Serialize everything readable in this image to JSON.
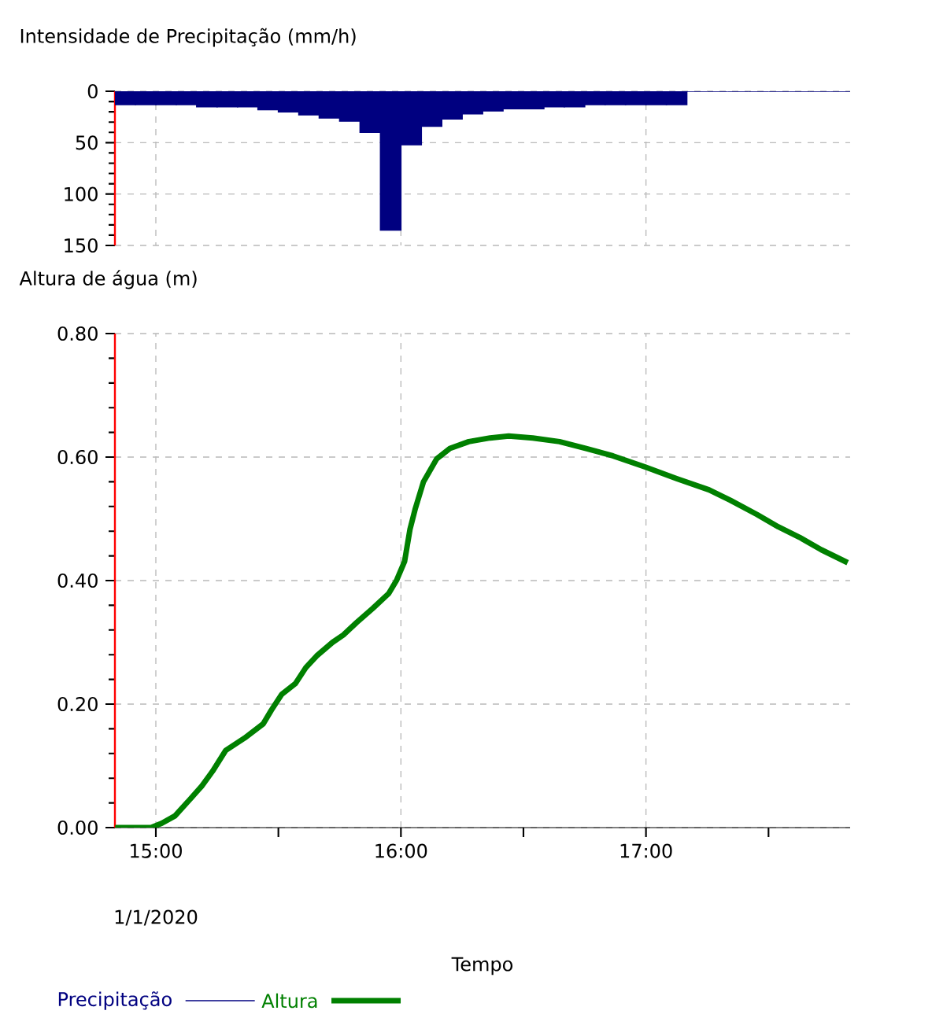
{
  "chart_data": [
    {
      "type": "bar",
      "title": "Intensidade de Precipitação (mm/h)",
      "xlim": [
        14.833,
        17.833
      ],
      "ylim": [
        150,
        0
      ],
      "xticks": [
        15,
        16,
        17
      ],
      "yticks": [
        0,
        50,
        100,
        150
      ],
      "tick_labels": "y",
      "grid": true,
      "legend": "bottom",
      "x": [
        14.875,
        14.9583,
        15.0417,
        15.125,
        15.2083,
        15.2917,
        15.375,
        15.4583,
        15.5417,
        15.625,
        15.7083,
        15.7917,
        15.875,
        15.9583,
        16.0417,
        16.125,
        16.2083,
        16.2917,
        16.375,
        16.4583,
        16.5417,
        16.625,
        16.7083,
        16.7917,
        16.875,
        16.9583,
        17.0417,
        17.125,
        17.2083,
        17.2917,
        17.375,
        17.4583,
        17.5417,
        17.625,
        17.7083,
        17.7917
      ],
      "series": [
        {
          "name": "Precipitação",
          "color": "#000080",
          "values": [
            13,
            13,
            13,
            13,
            15,
            15,
            15,
            18,
            20,
            23,
            26,
            29,
            40,
            135,
            52,
            34,
            27,
            22,
            19,
            17,
            17,
            15,
            15,
            13,
            13,
            13,
            13,
            13,
            0,
            0,
            0,
            0,
            0,
            0,
            0,
            0
          ]
        }
      ]
    },
    {
      "type": "line",
      "title": "Altura de água (m)",
      "xlabel": "Tempo",
      "xlim": [
        14.833,
        17.833
      ],
      "ylim": [
        0,
        0.8
      ],
      "xticks": [
        {
          "value": 15,
          "label": "15:00"
        },
        {
          "value": 15.5,
          "label": null
        },
        {
          "value": 16,
          "label": "16:00"
        },
        {
          "value": 16.5,
          "label": null
        },
        {
          "value": 17,
          "label": "17:00"
        },
        {
          "value": 17.5,
          "label": null
        }
      ],
      "yticks": [
        {
          "value": 0,
          "label": "0.00"
        },
        {
          "value": 0.2,
          "label": "0.20"
        },
        {
          "value": 0.4,
          "label": "0.40"
        },
        {
          "value": 0.6,
          "label": "0.60"
        },
        {
          "value": 0.8,
          "label": "0.80"
        }
      ],
      "grid": true,
      "legend": "bottom",
      "annotations": [
        "1/1/2020"
      ],
      "x": [
        14.834,
        14.98,
        15.024,
        15.078,
        15.133,
        15.187,
        15.231,
        15.285,
        15.362,
        15.438,
        15.471,
        15.514,
        15.569,
        15.612,
        15.656,
        15.721,
        15.765,
        15.819,
        15.885,
        15.95,
        15.983,
        16.015,
        16.037,
        16.059,
        16.092,
        16.146,
        16.2,
        16.277,
        16.364,
        16.44,
        16.538,
        16.647,
        16.756,
        16.865,
        16.996,
        17.126,
        17.257,
        17.344,
        17.453,
        17.54,
        17.627,
        17.715,
        17.823
      ],
      "series": [
        {
          "name": "Altura",
          "color": "#008000",
          "values": [
            0,
            0,
            0.007,
            0.019,
            0.043,
            0.067,
            0.091,
            0.125,
            0.145,
            0.168,
            0.19,
            0.216,
            0.233,
            0.259,
            0.278,
            0.3,
            0.312,
            0.332,
            0.355,
            0.379,
            0.401,
            0.431,
            0.483,
            0.517,
            0.56,
            0.597,
            0.614,
            0.625,
            0.631,
            0.634,
            0.631,
            0.625,
            0.614,
            0.602,
            0.584,
            0.565,
            0.547,
            0.53,
            0.507,
            0.487,
            0.47,
            0.45,
            0.429
          ]
        }
      ]
    }
  ]
}
